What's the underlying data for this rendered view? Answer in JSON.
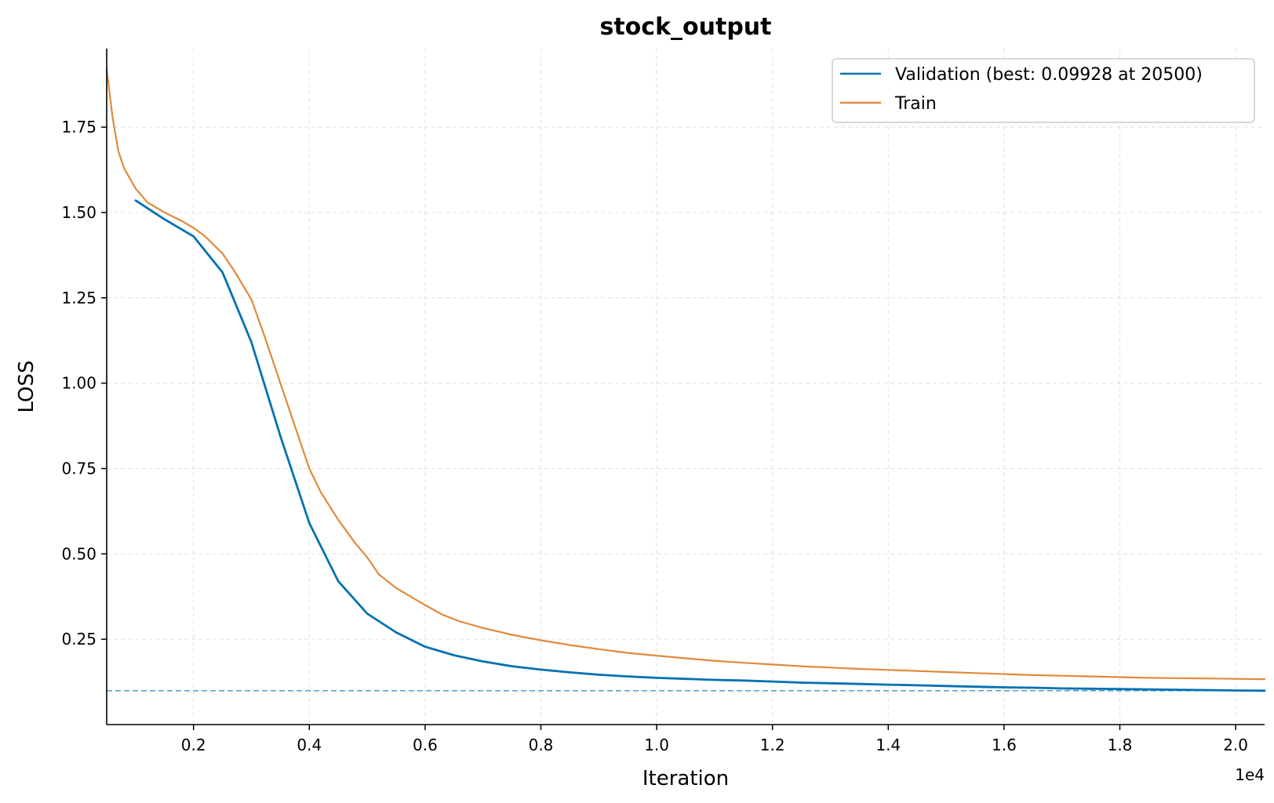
{
  "chart_data": {
    "type": "line",
    "title": "stock_output",
    "xlabel": "Iteration",
    "ylabel": "LOSS",
    "x_offset_label": "1e4",
    "xlim": [
      500,
      20500
    ],
    "ylim": [
      0.0,
      1.98
    ],
    "x_ticks": [
      2000,
      4000,
      6000,
      8000,
      10000,
      12000,
      14000,
      16000,
      18000,
      20000
    ],
    "x_tick_labels": [
      "0.2",
      "0.4",
      "0.6",
      "0.8",
      "1.0",
      "1.2",
      "1.4",
      "1.6",
      "1.8",
      "2.0"
    ],
    "y_ticks": [
      0.25,
      0.5,
      0.75,
      1.0,
      1.25,
      1.5,
      1.75
    ],
    "y_tick_labels": [
      "0.25",
      "0.50",
      "0.75",
      "1.00",
      "1.25",
      "1.50",
      "1.75"
    ],
    "grid": true,
    "legend_position": "top-right",
    "best_line": {
      "y": 0.09928,
      "color": "#4a90b8"
    },
    "series": [
      {
        "name": "Validation (best: 0.09928 at 20500)",
        "color": "#0072b2",
        "x": [
          1000,
          1500,
          2000,
          2500,
          3000,
          3500,
          4000,
          4500,
          5000,
          5500,
          6000,
          6500,
          7000,
          7500,
          8000,
          8500,
          9000,
          9500,
          10000,
          10500,
          11000,
          11500,
          12000,
          12500,
          13000,
          13500,
          14000,
          14500,
          15000,
          15500,
          16000,
          16500,
          17000,
          17500,
          18000,
          18500,
          19000,
          19500,
          20000,
          20500
        ],
        "y": [
          1.535,
          1.48,
          1.43,
          1.325,
          1.12,
          0.845,
          0.59,
          0.42,
          0.325,
          0.27,
          0.228,
          0.203,
          0.185,
          0.171,
          0.161,
          0.153,
          0.146,
          0.141,
          0.137,
          0.134,
          0.131,
          0.129,
          0.126,
          0.123,
          0.121,
          0.119,
          0.117,
          0.115,
          0.113,
          0.111,
          0.109,
          0.108,
          0.106,
          0.105,
          0.104,
          0.103,
          0.102,
          0.101,
          0.1,
          0.09928
        ]
      },
      {
        "name": "Train",
        "color": "#e08a3c",
        "x": [
          500,
          600,
          700,
          800,
          900,
          1000,
          1200,
          1500,
          1800,
          2000,
          2200,
          2500,
          2700,
          3000,
          3200,
          3500,
          3800,
          4000,
          4200,
          4500,
          4800,
          5000,
          5200,
          5500,
          5800,
          6000,
          6300,
          6600,
          7000,
          7500,
          8000,
          8500,
          9000,
          9500,
          10000,
          10500,
          11000,
          11500,
          12000,
          12500,
          13000,
          13500,
          14000,
          14500,
          15000,
          15500,
          16000,
          16500,
          17000,
          17500,
          18000,
          18500,
          19000,
          19500,
          20000,
          20500
        ],
        "y": [
          1.92,
          1.78,
          1.68,
          1.63,
          1.6,
          1.57,
          1.53,
          1.5,
          1.475,
          1.455,
          1.43,
          1.38,
          1.33,
          1.245,
          1.15,
          1.0,
          0.85,
          0.75,
          0.68,
          0.6,
          0.53,
          0.49,
          0.44,
          0.4,
          0.37,
          0.35,
          0.322,
          0.302,
          0.283,
          0.263,
          0.247,
          0.233,
          0.221,
          0.21,
          0.202,
          0.194,
          0.187,
          0.181,
          0.176,
          0.171,
          0.167,
          0.163,
          0.16,
          0.157,
          0.154,
          0.151,
          0.148,
          0.145,
          0.143,
          0.141,
          0.139,
          0.137,
          0.136,
          0.135,
          0.134,
          0.133
        ]
      }
    ]
  }
}
